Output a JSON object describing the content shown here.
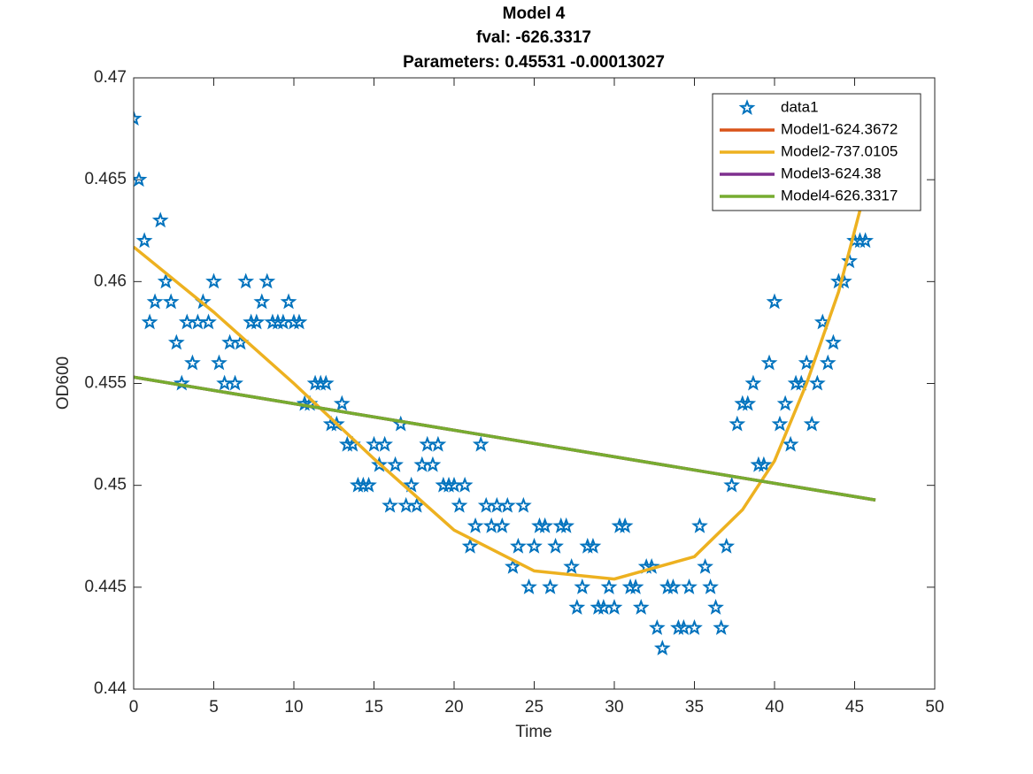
{
  "chart_data": {
    "type": "line",
    "title": [
      "Model 4",
      "fval: -626.3317",
      "Parameters: 0.45531 -0.00013027"
    ],
    "xlabel": "Time",
    "ylabel": "OD600",
    "xlim": [
      0,
      50
    ],
    "xticks": [
      0,
      5,
      10,
      15,
      20,
      25,
      30,
      35,
      40,
      45,
      50
    ],
    "ylim": [
      0.44,
      0.47
    ],
    "yticks": [
      0.44,
      0.445,
      0.45,
      0.455,
      0.46,
      0.465,
      0.47
    ],
    "legend": "upper-right",
    "grid": false,
    "series": [
      {
        "name": "data1",
        "color": "#0072bd",
        "marker": "star",
        "x": [
          0,
          0.33,
          0.67,
          1,
          1.33,
          1.67,
          2,
          2.33,
          2.67,
          3,
          3.33,
          3.67,
          4,
          4.33,
          4.67,
          5,
          5.33,
          5.67,
          6,
          6.33,
          6.67,
          7,
          7.33,
          7.67,
          8,
          8.33,
          8.67,
          9,
          9.33,
          9.67,
          10,
          10.33,
          10.67,
          11,
          11.33,
          11.67,
          12,
          12.33,
          12.67,
          13,
          13.33,
          13.67,
          14,
          14.33,
          14.67,
          15,
          15.33,
          15.67,
          16,
          16.33,
          16.67,
          17,
          17.33,
          17.67,
          18,
          18.33,
          18.67,
          19,
          19.33,
          19.67,
          20,
          20.33,
          20.67,
          21,
          21.33,
          21.67,
          22,
          22.33,
          22.67,
          23,
          23.33,
          23.67,
          24,
          24.33,
          24.67,
          25,
          25.33,
          25.67,
          26,
          26.33,
          26.67,
          27,
          27.33,
          27.67,
          28,
          28.33,
          28.67,
          29,
          29.33,
          29.67,
          30,
          30.33,
          30.67,
          31,
          31.33,
          31.67,
          32,
          32.33,
          32.67,
          33,
          33.33,
          33.67,
          34,
          34.33,
          34.67,
          35,
          35.33,
          35.67,
          36,
          36.33,
          36.67,
          37,
          37.33,
          37.67,
          38,
          38.33,
          38.67,
          39,
          39.33,
          39.67,
          40,
          40.33,
          40.67,
          41,
          41.33,
          41.67,
          42,
          42.33,
          42.67,
          43,
          43.33,
          43.67,
          44,
          44.33,
          44.67,
          45,
          45.33,
          45.67
        ],
        "values": [
          0.468,
          0.465,
          0.462,
          0.458,
          0.459,
          0.463,
          0.46,
          0.459,
          0.457,
          0.455,
          0.458,
          0.456,
          0.458,
          0.459,
          0.458,
          0.46,
          0.456,
          0.455,
          0.457,
          0.455,
          0.457,
          0.46,
          0.458,
          0.458,
          0.459,
          0.46,
          0.458,
          0.458,
          0.458,
          0.459,
          0.458,
          0.458,
          0.454,
          0.454,
          0.455,
          0.455,
          0.455,
          0.453,
          0.453,
          0.454,
          0.452,
          0.452,
          0.45,
          0.45,
          0.45,
          0.452,
          0.451,
          0.452,
          0.449,
          0.451,
          0.453,
          0.449,
          0.45,
          0.449,
          0.451,
          0.452,
          0.451,
          0.452,
          0.45,
          0.45,
          0.45,
          0.449,
          0.45,
          0.447,
          0.448,
          0.452,
          0.449,
          0.448,
          0.449,
          0.448,
          0.449,
          0.446,
          0.447,
          0.449,
          0.445,
          0.447,
          0.448,
          0.448,
          0.445,
          0.447,
          0.448,
          0.448,
          0.446,
          0.444,
          0.445,
          0.447,
          0.447,
          0.444,
          0.444,
          0.445,
          0.444,
          0.448,
          0.448,
          0.445,
          0.445,
          0.444,
          0.446,
          0.446,
          0.443,
          0.442,
          0.445,
          0.445,
          0.443,
          0.443,
          0.445,
          0.443,
          0.448,
          0.446,
          0.445,
          0.444,
          0.443,
          0.447,
          0.45,
          0.453,
          0.454,
          0.454,
          0.455,
          0.451,
          0.451,
          0.456,
          0.459,
          0.453,
          0.454,
          0.452,
          0.455,
          0.455,
          0.456,
          0.453,
          0.455,
          0.458,
          0.456,
          0.457,
          0.46,
          0.46,
          0.461,
          0.462,
          0.462,
          0.462
        ]
      },
      {
        "name": "Model1-624.3672",
        "color": "#d95319",
        "marker": "none",
        "x": [
          0,
          46.3
        ],
        "values": [
          0.45531,
          0.44928
        ]
      },
      {
        "name": "Model2-737.0105",
        "color": "#edb120",
        "marker": "none",
        "x": [
          0,
          5,
          10,
          15,
          20,
          25,
          30,
          35,
          38,
          40,
          42,
          44,
          46
        ],
        "values": [
          0.4617,
          0.4585,
          0.455,
          0.4513,
          0.4478,
          0.4458,
          0.4454,
          0.4465,
          0.4488,
          0.4512,
          0.455,
          0.4595,
          0.4655
        ]
      },
      {
        "name": "Model3-624.38",
        "color": "#7e2f8e",
        "marker": "none",
        "x": [
          0,
          46.3
        ],
        "values": [
          0.45531,
          0.44928
        ]
      },
      {
        "name": "Model4-626.3317",
        "color": "#77ac30",
        "marker": "none",
        "x": [
          0,
          46.3
        ],
        "values": [
          0.45531,
          0.44928
        ]
      }
    ]
  }
}
